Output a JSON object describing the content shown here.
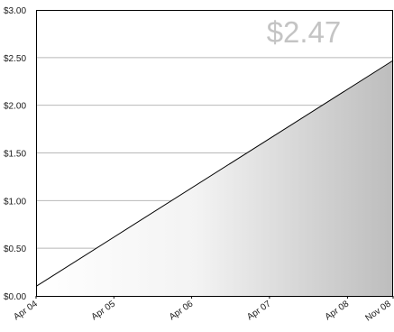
{
  "chart_data": {
    "type": "area",
    "title": "",
    "xlabel": "",
    "ylabel": "",
    "highlight_value": "$2.47",
    "x": [
      "Apr 04",
      "Nov 08"
    ],
    "values": [
      0.1,
      2.47
    ],
    "x_ticks": [
      {
        "label": "Apr 04",
        "date": "2004-04-01"
      },
      {
        "label": "Apr 05",
        "date": "2005-04-01"
      },
      {
        "label": "Apr 06",
        "date": "2006-04-01"
      },
      {
        "label": "Apr 07",
        "date": "2007-04-01"
      },
      {
        "label": "Apr 08",
        "date": "2008-04-01"
      },
      {
        "label": "Nov 08",
        "date": "2008-11-01"
      }
    ],
    "y_ticks": [
      {
        "label": "$0.00",
        "value": 0
      },
      {
        "label": "$0.50",
        "value": 0.5
      },
      {
        "label": "$1.00",
        "value": 1
      },
      {
        "label": "$1.50",
        "value": 1.5
      },
      {
        "label": "$2.00",
        "value": 2
      },
      {
        "label": "$2.50",
        "value": 2.5
      },
      {
        "label": "$3.00",
        "value": 3
      }
    ],
    "ylim": [
      0,
      3
    ],
    "grid": true,
    "fill_gradient": [
      "#ffffff",
      "#bdbdbd"
    ],
    "line_color": "#000000"
  }
}
